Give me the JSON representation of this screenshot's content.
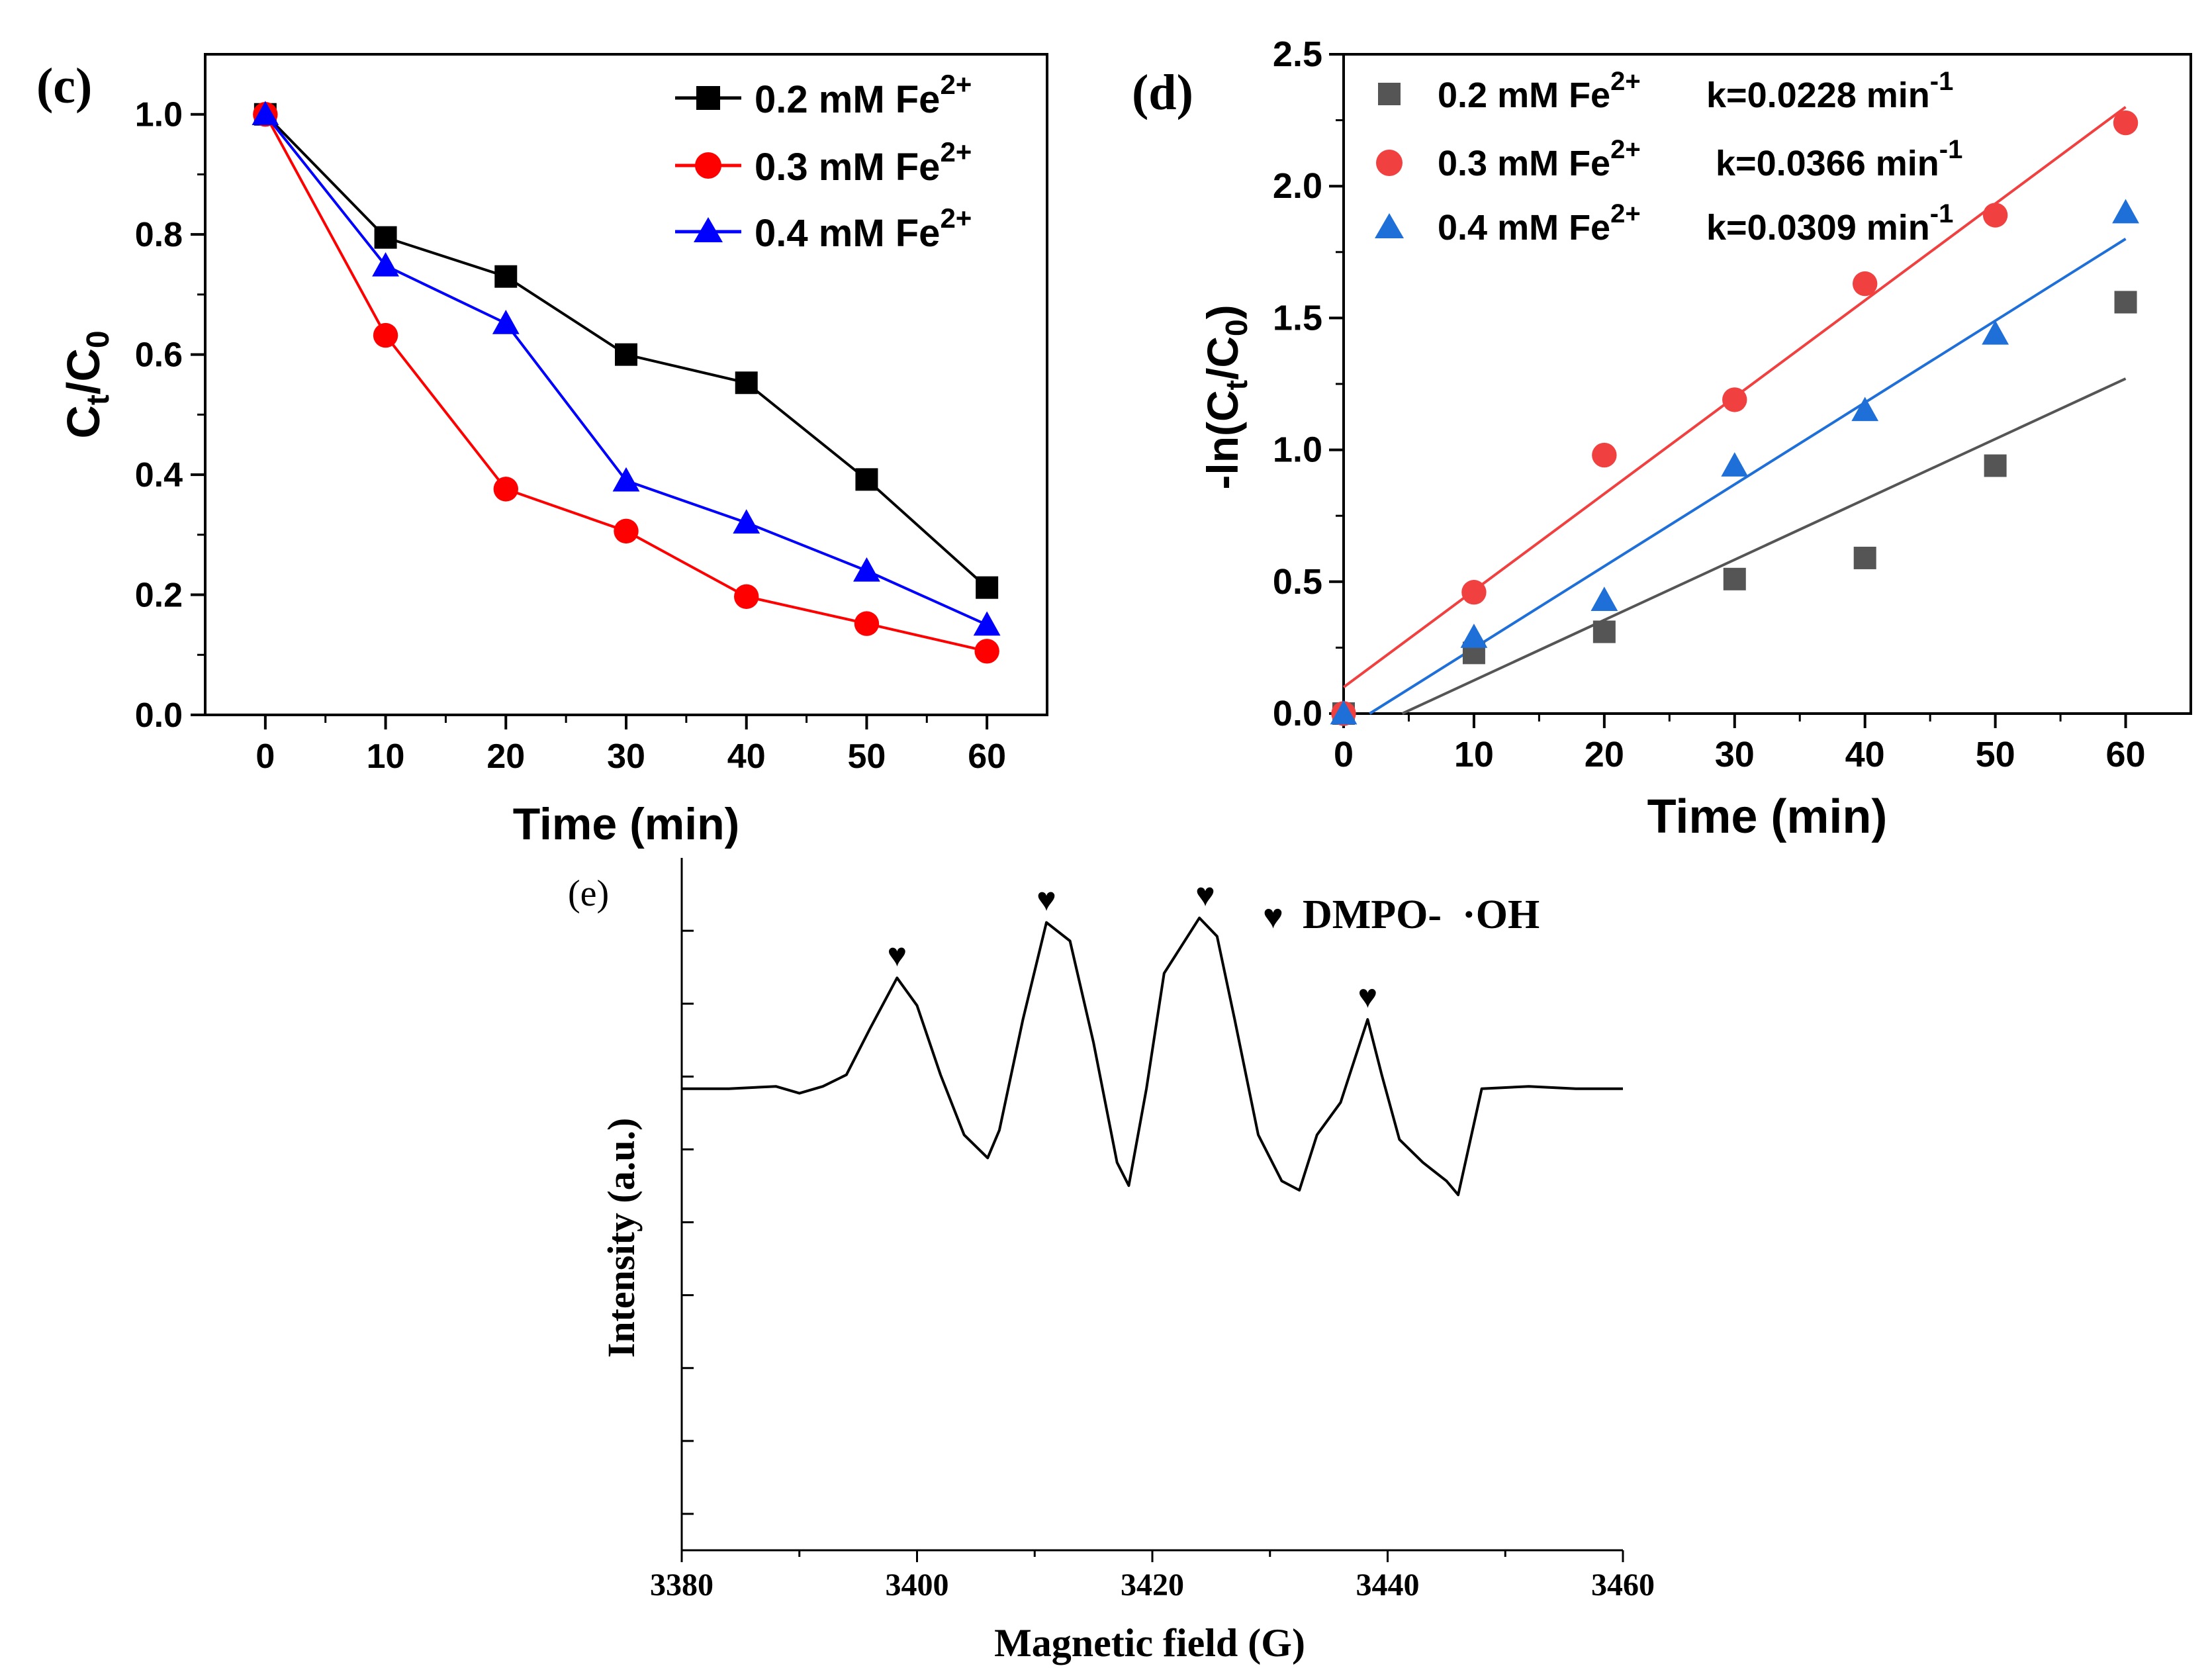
{
  "chart_data": [
    {
      "panel": "(c)",
      "type": "line",
      "xlabel": "Time (min)",
      "ylabel_main": "C",
      "ylabel_sub1": "t",
      "ylabel_mid": "/C",
      "ylabel_sub2": "0",
      "xlim": [
        -5,
        65
      ],
      "ylim": [
        0,
        1.1
      ],
      "xticks": [
        0,
        10,
        20,
        30,
        40,
        50,
        60
      ],
      "xtick_labels": [
        "0",
        "10",
        "20",
        "30",
        "40",
        "50",
        "60"
      ],
      "yticks": [
        0.0,
        0.2,
        0.4,
        0.6,
        0.8,
        1.0
      ],
      "ytick_labels": [
        "0.0",
        "0.2",
        "0.4",
        "0.6",
        "0.8",
        "1.0"
      ],
      "legend_position": "top-right",
      "series": [
        {
          "name": "0.2 mM Fe",
          "sup": "2+",
          "color": "#000000",
          "marker": "square",
          "x": [
            0,
            10,
            20,
            30,
            40,
            50,
            60
          ],
          "y": [
            1.0,
            0.795,
            0.73,
            0.6,
            0.553,
            0.392,
            0.212
          ]
        },
        {
          "name": "0.3 mM Fe",
          "sup": "2+",
          "color": "#ff0000",
          "marker": "circle",
          "x": [
            0,
            10,
            20,
            30,
            40,
            50,
            60
          ],
          "y": [
            1.0,
            0.632,
            0.376,
            0.306,
            0.197,
            0.152,
            0.106
          ]
        },
        {
          "name": "0.4 mM Fe",
          "sup": "2+",
          "color": "#0000ff",
          "marker": "triangle",
          "x": [
            0,
            10,
            20,
            30,
            40,
            50,
            60
          ],
          "y": [
            1.0,
            0.748,
            0.652,
            0.39,
            0.32,
            0.24,
            0.15
          ]
        }
      ]
    },
    {
      "panel": "(d)",
      "type": "scatter",
      "xlabel": "Time (min)",
      "ylabel_pre": "-ln(C",
      "ylabel_sub1": "t",
      "ylabel_mid": "/C",
      "ylabel_sub2": "0",
      "ylabel_post": ")",
      "xlim": [
        0,
        65
      ],
      "ylim": [
        0,
        2.5
      ],
      "xticks": [
        0,
        10,
        20,
        30,
        40,
        50,
        60
      ],
      "xtick_labels": [
        "0",
        "10",
        "20",
        "30",
        "40",
        "50",
        "60"
      ],
      "yticks": [
        0.0,
        0.5,
        1.0,
        1.5,
        2.0,
        2.5
      ],
      "ytick_labels": [
        "0.0",
        "0.5",
        "1.0",
        "1.5",
        "2.0",
        "2.5"
      ],
      "legend_position": "top-left",
      "series": [
        {
          "name": "0.2 mM Fe",
          "sup": "2+",
          "k_label": "k=0.0228 min",
          "k_sup": "-1",
          "color": "#555555",
          "marker": "square",
          "x": [
            0,
            10,
            20,
            30,
            40,
            50,
            60
          ],
          "y": [
            0.0,
            0.23,
            0.31,
            0.51,
            0.59,
            0.94,
            1.56
          ],
          "fit": {
            "x": [
              4.5,
              60
            ],
            "y": [
              0.0,
              1.27
            ]
          }
        },
        {
          "name": "0.3 mM Fe",
          "sup": "2+",
          "k_label": "k=0.0366 min",
          "k_sup": "-1",
          "color": "#f04040",
          "marker": "circle",
          "x": [
            0,
            10,
            20,
            30,
            40,
            50,
            60
          ],
          "y": [
            0.0,
            0.46,
            0.98,
            1.19,
            1.63,
            1.89,
            2.24
          ],
          "fit": {
            "x": [
              0,
              60
            ],
            "y": [
              0.1,
              2.3
            ]
          }
        },
        {
          "name": "0.4 mM Fe",
          "sup": "2+",
          "k_label": "k=0.0309 min",
          "k_sup": "-1",
          "color": "#1f6fd8",
          "marker": "triangle",
          "x": [
            0,
            10,
            20,
            30,
            40,
            50,
            60
          ],
          "y": [
            0.0,
            0.29,
            0.43,
            0.94,
            1.15,
            1.44,
            1.9
          ],
          "fit": {
            "x": [
              2,
              60
            ],
            "y": [
              0.0,
              1.8
            ]
          }
        }
      ]
    },
    {
      "panel": "(e)",
      "type": "line",
      "xlabel": "Magnetic field (G)",
      "ylabel": "Intensity (a.u.)",
      "legend_label": "DMPO-  ·OH",
      "xlim": [
        3380,
        3460
      ],
      "xticks": [
        3380,
        3400,
        3420,
        3440,
        3460
      ],
      "xtick_labels": [
        "3380",
        "3400",
        "3420",
        "3440",
        "3460"
      ],
      "ylim": [
        -10,
        5
      ],
      "yticks_count": 9,
      "peak_marker_x": [
        3398.3,
        3411.0,
        3424.5,
        3438.3
      ],
      "spectrum": {
        "x": [
          3380,
          3384,
          3388,
          3390,
          3392,
          3394,
          3396,
          3398.3,
          3400,
          3402,
          3404,
          3406,
          3407,
          3409,
          3411,
          3413,
          3415,
          3417,
          3418,
          3419.5,
          3421,
          3424,
          3425.5,
          3427,
          3429,
          3431,
          3432.5,
          3434,
          3436,
          3438.3,
          3439.5,
          3441,
          3443,
          3445,
          3446,
          3448,
          3452,
          3456,
          3460
        ],
        "y": [
          0,
          0,
          0.05,
          -0.1,
          0.05,
          0.3,
          1.3,
          2.4,
          1.8,
          0.3,
          -1.0,
          -1.5,
          -0.9,
          1.5,
          3.6,
          3.2,
          1.0,
          -1.6,
          -2.1,
          0.0,
          2.5,
          3.7,
          3.3,
          1.5,
          -1.0,
          -2.0,
          -2.2,
          -1.0,
          -0.3,
          1.5,
          0.3,
          -1.1,
          -1.6,
          -2.0,
          -2.3,
          0.0,
          0.05,
          0,
          0
        ]
      }
    }
  ]
}
